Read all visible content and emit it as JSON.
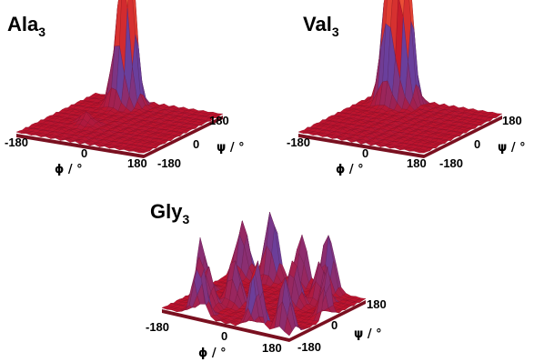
{
  "chart_data": [
    {
      "type": "surface",
      "title": "Ala",
      "title_subscript": "3",
      "xlabel": "ϕ / °",
      "ylabel": "ψ / °",
      "x_ticks": [
        "-180",
        "0",
        "180"
      ],
      "y_ticks": [
        "180",
        "0",
        "-180"
      ],
      "xlim": [
        -180,
        180
      ],
      "ylim": [
        -180,
        180
      ],
      "colors": {
        "surface": "#c0122a",
        "low": "#8a2a6a",
        "mid": "#6a3f9c",
        "peak": "#ff6a3c"
      },
      "peaks": [
        {
          "phi": -70,
          "psi": 150,
          "height": 0.85
        },
        {
          "phi": -60,
          "psi": 140,
          "height": 1.0
        },
        {
          "phi": -80,
          "psi": 120,
          "height": 0.55
        },
        {
          "phi": -70,
          "psi": -40,
          "height": 0.1
        }
      ]
    },
    {
      "type": "surface",
      "title": "Val",
      "title_subscript": "3",
      "xlabel": "ϕ / °",
      "ylabel": "ψ / °",
      "x_ticks": [
        "-180",
        "0",
        "180"
      ],
      "y_ticks": [
        "180",
        "0",
        "-180"
      ],
      "xlim": [
        -180,
        180
      ],
      "ylim": [
        -180,
        180
      ],
      "colors": {
        "surface": "#c0122a",
        "low": "#8a2a6a",
        "mid": "#6a3f9c",
        "peak": "#ff6a3c"
      },
      "peaks": [
        {
          "phi": -120,
          "psi": 130,
          "height": 0.75
        },
        {
          "phi": -80,
          "psi": 150,
          "height": 0.95
        },
        {
          "phi": -100,
          "psi": 120,
          "height": 0.6
        },
        {
          "phi": -70,
          "psi": 140,
          "height": 0.8
        }
      ]
    },
    {
      "type": "surface",
      "title": "Gly",
      "title_subscript": "3",
      "xlabel": "ϕ / °",
      "ylabel": "ψ / °",
      "x_ticks": [
        "-180",
        "0",
        "180"
      ],
      "y_ticks": [
        "180",
        "0",
        "-180"
      ],
      "xlim": [
        -180,
        180
      ],
      "ylim": [
        -180,
        180
      ],
      "colors": {
        "surface": "#c0122a",
        "low": "#8a2a6a",
        "mid": "#6a3f9c",
        "peak": "#ff6a3c"
      },
      "peaks": [
        {
          "phi": -80,
          "psi": 170,
          "height": 0.7
        },
        {
          "phi": 80,
          "psi": -170,
          "height": 0.7
        },
        {
          "phi": -150,
          "psi": 150,
          "height": 0.55
        },
        {
          "phi": 150,
          "psi": -150,
          "height": 0.55
        },
        {
          "phi": 80,
          "psi": 170,
          "height": 0.6
        },
        {
          "phi": -80,
          "psi": -170,
          "height": 0.6
        },
        {
          "phi": 0,
          "psi": 180,
          "height": 0.5
        },
        {
          "phi": 180,
          "psi": 0,
          "height": 0.5
        },
        {
          "phi": -180,
          "psi": 0,
          "height": 0.5
        },
        {
          "phi": 60,
          "psi": 40,
          "height": 0.45
        },
        {
          "phi": -60,
          "psi": -40,
          "height": 0.45
        },
        {
          "phi": 100,
          "psi": 100,
          "height": 0.4
        },
        {
          "phi": -100,
          "psi": -100,
          "height": 0.4
        }
      ]
    }
  ]
}
